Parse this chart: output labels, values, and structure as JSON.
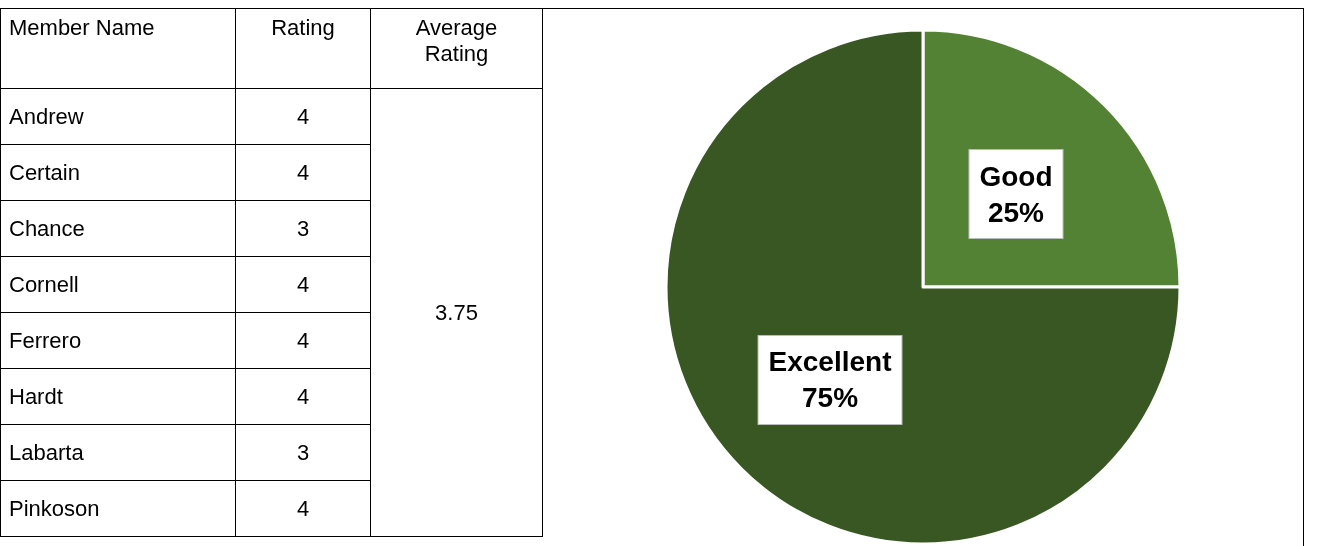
{
  "chart_data": [
    {
      "type": "other",
      "xlabel": "Member Name",
      "ylabel": "Rating",
      "categories": [
        "Andrew",
        "Certain",
        "Chance",
        "Cornell",
        "Ferrero",
        "Hardt",
        "Labarta",
        "Pinkoson"
      ],
      "values": [
        4,
        4,
        3,
        4,
        4,
        4,
        3,
        4
      ],
      "data_labels": true,
      "annotations": [
        "Average Rating",
        "3.75"
      ]
    },
    {
      "type": "pie",
      "categories": [
        "Good",
        "Excellent"
      ],
      "values": [
        25,
        75
      ],
      "colors": [
        "#548235",
        "#385723"
      ],
      "value_labels": [
        "25%",
        "75%"
      ]
    }
  ]
}
